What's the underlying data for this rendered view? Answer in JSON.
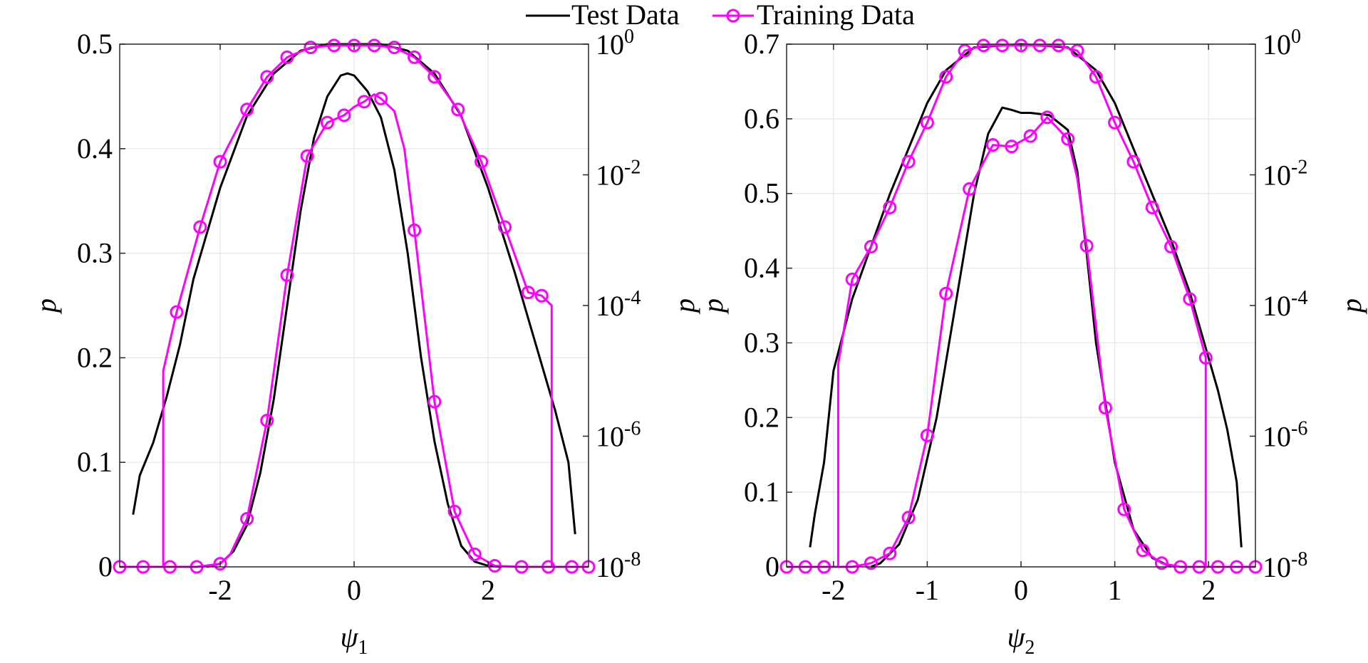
{
  "legend": {
    "position": "top-center",
    "entries": [
      {
        "label": "Test Data",
        "color": "#000000",
        "marker": "none"
      },
      {
        "label": "Training Data",
        "color": "#ff00ff",
        "marker": "circle"
      }
    ]
  },
  "chart_data": [
    {
      "type": "line",
      "xlabel": "ψ",
      "xlabel_sub": "1",
      "ylabel_left": "p",
      "ylabel_right": "p",
      "xlim": [
        -3.5,
        3.5
      ],
      "ylim_left": [
        0,
        0.5
      ],
      "ylim_right_log10": [
        -8,
        0
      ],
      "xticks": [
        -2,
        0,
        2
      ],
      "xtick_labels": [
        "-2",
        "0",
        "2"
      ],
      "yticks_left": [
        0,
        0.1,
        0.2,
        0.3,
        0.4,
        0.5
      ],
      "ytick_labels_left": [
        "0",
        "0.1",
        "0.2",
        "0.3",
        "0.4",
        "0.5"
      ],
      "yticks_right_log10": [
        -8,
        -6,
        -4,
        -2,
        0
      ],
      "ytick_labels_right": [
        {
          "base": "10",
          "exp": "-8"
        },
        {
          "base": "10",
          "exp": "-6"
        },
        {
          "base": "10",
          "exp": "-4"
        },
        {
          "base": "10",
          "exp": "-2"
        },
        {
          "base": "10",
          "exp": "0"
        }
      ],
      "grid": true,
      "series": [
        {
          "name": "Test Data",
          "axis": "left",
          "color": "#000000",
          "marker": "none",
          "x": [
            -2.2,
            -2.0,
            -1.8,
            -1.6,
            -1.4,
            -1.2,
            -1.0,
            -0.8,
            -0.6,
            -0.4,
            -0.2,
            -0.1,
            0.0,
            0.2,
            0.4,
            0.6,
            0.8,
            1.0,
            1.2,
            1.4,
            1.6,
            1.8,
            2.0,
            2.2
          ],
          "y": [
            0.0,
            0.003,
            0.015,
            0.04,
            0.09,
            0.16,
            0.25,
            0.34,
            0.41,
            0.45,
            0.47,
            0.472,
            0.47,
            0.455,
            0.43,
            0.38,
            0.3,
            0.2,
            0.12,
            0.06,
            0.02,
            0.005,
            0.001,
            0.0
          ]
        },
        {
          "name": "Training Data",
          "axis": "left",
          "color": "#ff00ff",
          "marker": "circle",
          "x": [
            -3.5,
            -3.15,
            -2.75,
            -2.35,
            -2.0,
            -1.85,
            -1.6,
            -1.3,
            -1.0,
            -0.7,
            -0.4,
            -0.15,
            0.0,
            0.15,
            0.3,
            0.4,
            0.6,
            0.75,
            0.9,
            1.2,
            1.5,
            1.8,
            2.1,
            2.5,
            2.9,
            3.25,
            3.5
          ],
          "y": [
            0.0,
            0.0,
            0.0,
            0.0,
            0.003,
            0.012,
            0.046,
            0.14,
            0.279,
            0.393,
            0.425,
            0.432,
            0.44,
            0.445,
            0.452,
            0.448,
            0.436,
            0.4,
            0.322,
            0.158,
            0.053,
            0.012,
            0.001,
            0.0,
            0.0,
            0.0,
            0.0
          ]
        },
        {
          "name": "Test Data",
          "axis": "right",
          "color": "#000000",
          "marker": "none",
          "x": [
            -3.3,
            -3.2,
            -3.0,
            -2.8,
            -2.6,
            -2.4,
            -2.0,
            -1.6,
            -1.2,
            -0.8,
            -0.4,
            0.0,
            0.4,
            0.8,
            1.2,
            1.6,
            2.0,
            2.4,
            2.8,
            3.0,
            3.2,
            3.3
          ],
          "y": [
            -7.2,
            -6.6,
            -6.1,
            -5.4,
            -4.6,
            -3.6,
            -2.2,
            -1.1,
            -0.45,
            -0.1,
            0.0,
            0.0,
            0.0,
            -0.1,
            -0.45,
            -1.1,
            -2.2,
            -3.5,
            -4.9,
            -5.6,
            -6.4,
            -7.5
          ]
        },
        {
          "name": "Training Data",
          "axis": "right",
          "color": "#ff00ff",
          "marker": "circle",
          "x": [
            -3.5,
            -3.15,
            -2.85,
            -2.85,
            -2.65,
            -2.3,
            -2.0,
            -1.6,
            -1.3,
            -1.0,
            -0.65,
            -0.3,
            0.0,
            0.3,
            0.6,
            0.9,
            1.2,
            1.55,
            1.9,
            2.25,
            2.6,
            2.8,
            2.95,
            2.95,
            3.2,
            3.5
          ],
          "y": [
            -8.0,
            -8.0,
            -8.0,
            -5.0,
            -4.1,
            -2.8,
            -1.8,
            -1.0,
            -0.5,
            -0.2,
            -0.05,
            -0.02,
            -0.02,
            -0.02,
            -0.05,
            -0.2,
            -0.5,
            -1.0,
            -1.8,
            -2.8,
            -3.8,
            -3.85,
            -4.0,
            -8.0,
            -8.0,
            -8.0
          ]
        }
      ],
      "markers": [
        {
          "series": 1,
          "x": [
            -3.5,
            -3.15,
            -2.75,
            -2.35,
            -2.0,
            -1.6,
            -1.3,
            -1.0,
            -0.7,
            -0.4,
            -0.15,
            0.15,
            0.4,
            0.9,
            1.2,
            1.5,
            1.8,
            2.1,
            2.5,
            2.9,
            3.25,
            3.5
          ]
        },
        {
          "series": 3,
          "x": [
            -2.65,
            -2.3,
            -2.0,
            -1.6,
            -1.3,
            -1.0,
            -0.65,
            -0.3,
            0.0,
            0.3,
            0.6,
            0.9,
            1.2,
            1.55,
            1.9,
            2.25,
            2.6,
            2.8
          ]
        }
      ]
    },
    {
      "type": "line",
      "xlabel": "ψ",
      "xlabel_sub": "2",
      "ylabel_left": "p",
      "ylabel_right": "p",
      "xlim": [
        -2.5,
        2.5
      ],
      "ylim_left": [
        0,
        0.7
      ],
      "ylim_right_log10": [
        -8,
        0
      ],
      "xticks": [
        -2,
        -1,
        0,
        1,
        2
      ],
      "xtick_labels": [
        "-2",
        "-1",
        "0",
        "1",
        "2"
      ],
      "yticks_left": [
        0,
        0.1,
        0.2,
        0.3,
        0.4,
        0.5,
        0.6,
        0.7
      ],
      "ytick_labels_left": [
        "0",
        "0.1",
        "0.2",
        "0.3",
        "0.4",
        "0.5",
        "0.6",
        "0.7"
      ],
      "yticks_right_log10": [
        -8,
        -6,
        -4,
        -2,
        0
      ],
      "ytick_labels_right": [
        {
          "base": "10",
          "exp": "-8"
        },
        {
          "base": "10",
          "exp": "-6"
        },
        {
          "base": "10",
          "exp": "-4"
        },
        {
          "base": "10",
          "exp": "-2"
        },
        {
          "base": "10",
          "exp": "0"
        }
      ],
      "grid": true,
      "series": [
        {
          "name": "Test Data",
          "axis": "left",
          "color": "#000000",
          "marker": "none",
          "x": [
            -1.6,
            -1.5,
            -1.3,
            -1.1,
            -0.9,
            -0.7,
            -0.5,
            -0.35,
            -0.2,
            -0.1,
            0.0,
            0.1,
            0.3,
            0.5,
            0.6,
            0.7,
            0.8,
            1.0,
            1.2,
            1.4,
            1.6
          ],
          "y": [
            0.0,
            0.005,
            0.03,
            0.09,
            0.2,
            0.35,
            0.5,
            0.58,
            0.615,
            0.612,
            0.608,
            0.608,
            0.605,
            0.585,
            0.53,
            0.42,
            0.3,
            0.14,
            0.05,
            0.012,
            0.0
          ]
        },
        {
          "name": "Training Data",
          "axis": "left",
          "color": "#ff00ff",
          "marker": "circle",
          "x": [
            -2.5,
            -2.3,
            -2.1,
            -1.8,
            -1.6,
            -1.4,
            -1.2,
            -1.0,
            -0.8,
            -0.55,
            -0.45,
            -0.3,
            -0.1,
            0.1,
            0.28,
            0.5,
            0.6,
            0.7,
            0.9,
            1.1,
            1.3,
            1.5,
            1.7,
            1.9,
            2.1,
            2.3,
            2.5
          ],
          "y": [
            0.0,
            0.0,
            0.0,
            0.0,
            0.005,
            0.018,
            0.066,
            0.176,
            0.366,
            0.506,
            0.53,
            0.565,
            0.563,
            0.577,
            0.602,
            0.573,
            0.52,
            0.43,
            0.213,
            0.077,
            0.022,
            0.005,
            0.0,
            0.0,
            0.0,
            0.0,
            0.0
          ]
        },
        {
          "name": "Test Data",
          "axis": "right",
          "color": "#000000",
          "marker": "none",
          "x": [
            -2.25,
            -2.2,
            -2.1,
            -2.0,
            -1.8,
            -1.6,
            -1.4,
            -1.2,
            -1.0,
            -0.8,
            -0.5,
            0.0,
            0.5,
            0.8,
            1.0,
            1.2,
            1.4,
            1.6,
            1.8,
            2.0,
            2.1,
            2.2,
            2.3,
            2.35
          ],
          "y": [
            -7.7,
            -7.2,
            -6.4,
            -5.0,
            -3.9,
            -3.1,
            -2.3,
            -1.6,
            -0.9,
            -0.4,
            -0.05,
            0.0,
            -0.05,
            -0.4,
            -0.9,
            -1.6,
            -2.3,
            -3.0,
            -3.8,
            -4.8,
            -5.3,
            -5.9,
            -6.7,
            -7.7
          ]
        },
        {
          "name": "Training Data",
          "axis": "right",
          "color": "#ff00ff",
          "marker": "circle",
          "x": [
            -2.5,
            -2.3,
            -2.1,
            -1.95,
            -1.95,
            -1.8,
            -1.6,
            -1.4,
            -1.2,
            -1.0,
            -0.8,
            -0.6,
            -0.4,
            -0.2,
            0.0,
            0.2,
            0.4,
            0.6,
            0.8,
            1.0,
            1.2,
            1.4,
            1.6,
            1.8,
            1.97,
            1.97,
            2.1,
            2.3,
            2.5
          ],
          "y": [
            -8.0,
            -8.0,
            -8.0,
            -8.0,
            -4.9,
            -3.6,
            -3.1,
            -2.5,
            -1.8,
            -1.2,
            -0.5,
            -0.1,
            -0.02,
            -0.02,
            -0.02,
            -0.02,
            -0.02,
            -0.1,
            -0.5,
            -1.2,
            -1.8,
            -2.5,
            -3.1,
            -3.9,
            -4.8,
            -8.0,
            -8.0,
            -8.0,
            -8.0
          ]
        }
      ],
      "markers": [
        {
          "series": 1,
          "x": [
            -2.5,
            -2.3,
            -2.1,
            -1.8,
            -1.6,
            -1.4,
            -1.2,
            -1.0,
            -0.8,
            -0.55,
            -0.3,
            -0.1,
            0.1,
            0.28,
            0.5,
            0.7,
            0.9,
            1.1,
            1.3,
            1.5,
            1.7,
            1.9,
            2.1,
            2.3,
            2.5
          ]
        },
        {
          "series": 3,
          "x": [
            -2.1,
            -1.8,
            -1.6,
            -1.4,
            -1.2,
            -1.0,
            -0.8,
            -0.6,
            -0.4,
            -0.2,
            0.0,
            0.2,
            0.4,
            0.6,
            0.8,
            1.0,
            1.2,
            1.4,
            1.6,
            1.8,
            1.97
          ]
        }
      ]
    }
  ]
}
